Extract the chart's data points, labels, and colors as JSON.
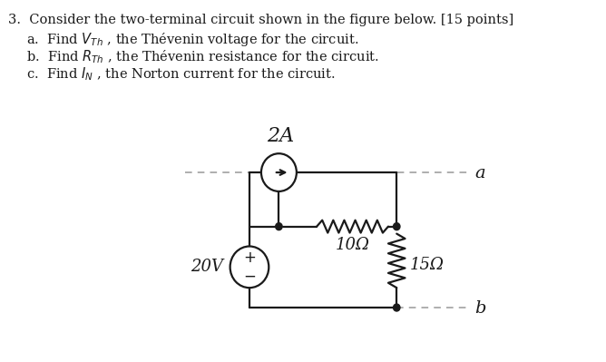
{
  "bg_color": "#ffffff",
  "text_color": "#1a1a1a",
  "title_line": "3.  Consider the two-terminal circuit shown in the figure below. [15 points]",
  "item_a": "a.  Find $V_{Th}$ , the Thévenin voltage for the circuit.",
  "item_b": "b.  Find $R_{Th}$ , the Thévenin resistance for the circuit.",
  "item_c": "c.  Find $I_N$ , the Norton current for the circuit.",
  "label_2A": "2A",
  "label_10ohm": "10Ω",
  "label_15ohm": "15Ω",
  "label_20V": "20V",
  "label_a": "a",
  "label_b": "b",
  "figsize": [
    6.68,
    3.99
  ],
  "dpi": 100
}
